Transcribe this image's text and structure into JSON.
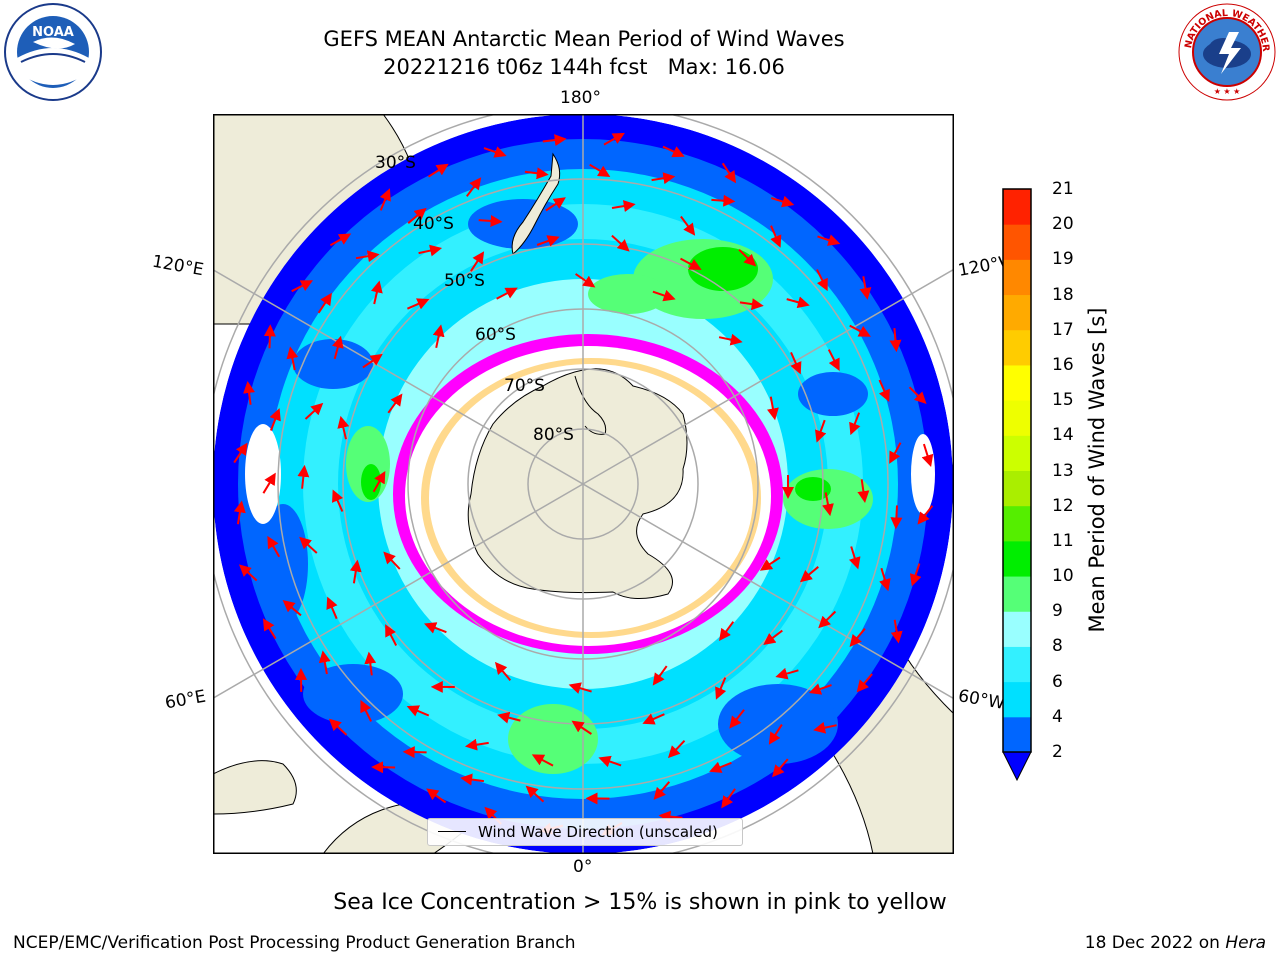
{
  "title": {
    "line1": "GEFS MEAN Antarctic Mean Period of Wind Waves",
    "line2": "20221216 t06z 144h fcst   Max: 16.06"
  },
  "logos": {
    "left": "NOAA",
    "right": "NATIONAL WEATHER SERVICE"
  },
  "map": {
    "projection": "south-polar-stereographic",
    "longitude_labels": [
      "180°",
      "120°E",
      "120°W",
      "60°E",
      "60°W",
      "0°"
    ],
    "latitude_labels": [
      "30°S",
      "40°S",
      "50°S",
      "60°S",
      "70°S",
      "80°S"
    ],
    "legend_text": "Wind Wave Direction (unscaled)",
    "colors": {
      "land": "#eeecd9",
      "arrow": "#ff0000",
      "ice_low": "#ff00ff",
      "ice_high": "#ffff00"
    }
  },
  "colorbar": {
    "label": "Mean Period of Wind Waves [s]",
    "ticks": [
      "2",
      "4",
      "6",
      "8",
      "9",
      "10",
      "11",
      "12",
      "13",
      "14",
      "15",
      "16",
      "17",
      "18",
      "19",
      "20",
      "21"
    ],
    "colors": [
      "#0066ff",
      "#00e0ff",
      "#33f0ff",
      "#99ffff",
      "#55ff77",
      "#00ee00",
      "#55ee00",
      "#aaee00",
      "#ccff00",
      "#eeff00",
      "#ffff00",
      "#ffcc00",
      "#ffaa00",
      "#ff8800",
      "#ff5500",
      "#ff2200",
      "#ff0000"
    ],
    "under_color": "#0000ff"
  },
  "footer": {
    "note": "Sea Ice Concentration > 15% is shown in pink to yellow",
    "credit_left": "NCEP/EMC/Verification Post Processing Product Generation Branch",
    "credit_right_date": "18 Dec 2022 on ",
    "credit_right_host": "Hera"
  }
}
